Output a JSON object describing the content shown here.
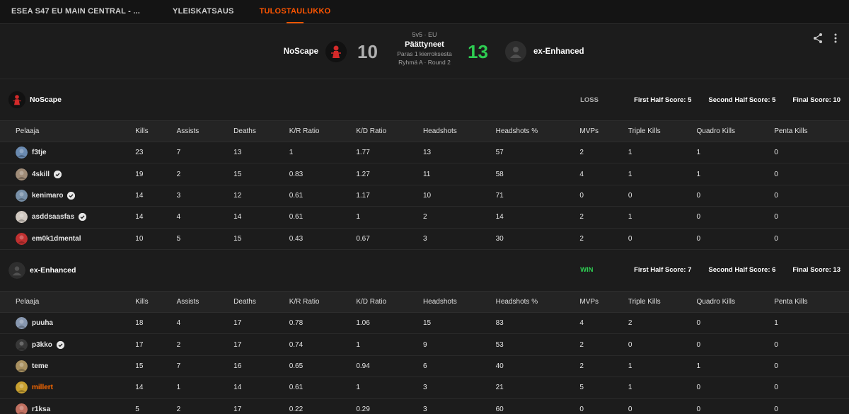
{
  "tabs": [
    {
      "label": "ESEA S47 EU MAIN CENTRAL - ...",
      "active": false
    },
    {
      "label": "YLEISKATSAUS",
      "active": false
    },
    {
      "label": "TULOSTAULUKKO",
      "active": true
    }
  ],
  "header": {
    "team_left": "NoScape",
    "team_right": "ex-Enhanced",
    "score_left": "10",
    "score_right": "13",
    "format": "5v5 · EU",
    "status": "Päättyneet",
    "best_of": "Paras 1 kierroksesta",
    "round": "Ryhmä A · Round 2"
  },
  "columns": [
    "Pelaaja",
    "Kills",
    "Assists",
    "Deaths",
    "K/R Ratio",
    "K/D Ratio",
    "Headshots",
    "Headshots %",
    "MVPs",
    "Triple Kills",
    "Quadro Kills",
    "Penta Kills"
  ],
  "teams": [
    {
      "name": "NoScape",
      "result": "LOSS",
      "first_half": "First Half Score: 5",
      "second_half": "Second Half Score: 5",
      "final": "Final Score: 10",
      "players": [
        {
          "name": "f3tje",
          "verified": false,
          "highlight": false,
          "avatar_color": "#6a8ab0",
          "stats": [
            "23",
            "7",
            "13",
            "1",
            "1.77",
            "13",
            "57",
            "2",
            "1",
            "1",
            "0"
          ]
        },
        {
          "name": "4skill",
          "verified": true,
          "highlight": false,
          "avatar_color": "#a08c78",
          "stats": [
            "19",
            "2",
            "15",
            "0.83",
            "1.27",
            "11",
            "58",
            "4",
            "1",
            "1",
            "0"
          ]
        },
        {
          "name": "kenimaro",
          "verified": true,
          "highlight": false,
          "avatar_color": "#7890a8",
          "stats": [
            "14",
            "3",
            "12",
            "0.61",
            "1.17",
            "10",
            "71",
            "0",
            "0",
            "0",
            "0"
          ]
        },
        {
          "name": "asddsaasfas",
          "verified": true,
          "highlight": false,
          "avatar_color": "#d0c8c0",
          "stats": [
            "14",
            "4",
            "14",
            "0.61",
            "1",
            "2",
            "14",
            "2",
            "1",
            "0",
            "0"
          ]
        },
        {
          "name": "em0k1dmental",
          "verified": false,
          "highlight": false,
          "avatar_color": "#c03030",
          "stats": [
            "10",
            "5",
            "15",
            "0.43",
            "0.67",
            "3",
            "30",
            "2",
            "0",
            "0",
            "0"
          ]
        }
      ]
    },
    {
      "name": "ex-Enhanced",
      "result": "WIN",
      "first_half": "First Half Score: 7",
      "second_half": "Second Half Score: 6",
      "final": "Final Score: 13",
      "players": [
        {
          "name": "puuha",
          "verified": false,
          "highlight": false,
          "avatar_color": "#8898b0",
          "stats": [
            "18",
            "4",
            "17",
            "0.78",
            "1.06",
            "15",
            "83",
            "4",
            "2",
            "0",
            "1"
          ]
        },
        {
          "name": "p3kko",
          "verified": true,
          "highlight": false,
          "avatar_color": "#383838",
          "stats": [
            "17",
            "2",
            "17",
            "0.74",
            "1",
            "9",
            "53",
            "2",
            "0",
            "0",
            "0"
          ]
        },
        {
          "name": "teme",
          "verified": false,
          "highlight": false,
          "avatar_color": "#a89060",
          "stats": [
            "15",
            "7",
            "16",
            "0.65",
            "0.94",
            "6",
            "40",
            "2",
            "1",
            "1",
            "0"
          ]
        },
        {
          "name": "millert",
          "verified": false,
          "highlight": true,
          "avatar_color": "#c8a030",
          "stats": [
            "14",
            "1",
            "14",
            "0.61",
            "1",
            "3",
            "21",
            "5",
            "1",
            "0",
            "0"
          ]
        },
        {
          "name": "r1ksa",
          "verified": false,
          "highlight": false,
          "avatar_color": "#c07060",
          "stats": [
            "5",
            "2",
            "17",
            "0.22",
            "0.29",
            "3",
            "60",
            "0",
            "0",
            "0",
            "0"
          ]
        }
      ]
    }
  ],
  "colors": {
    "accent": "#ff5500",
    "win": "#2ecc52",
    "loss": "#b0b0b0"
  },
  "icons": {
    "share": "share-icon",
    "more": "more-vertical-icon",
    "verified": "verified-check-icon"
  }
}
